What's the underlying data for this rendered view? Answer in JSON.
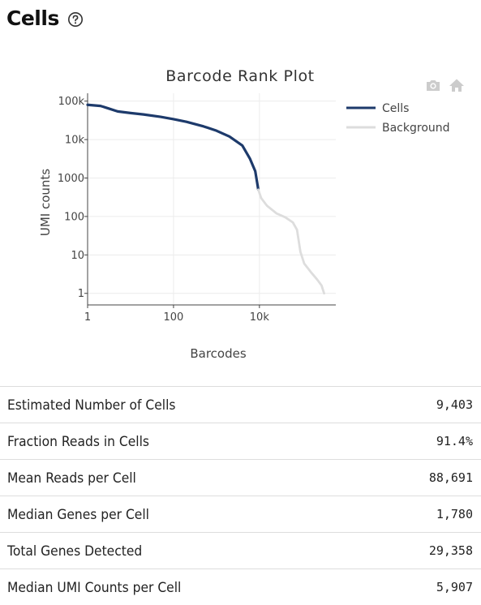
{
  "section": {
    "title": "Cells",
    "help_icon": "question-circle-icon"
  },
  "toolbar": {
    "icons": [
      "camera-icon",
      "home-icon"
    ]
  },
  "chart_data": {
    "type": "line",
    "title": "Barcode Rank Plot",
    "xlabel": "Barcodes",
    "ylabel": "UMI counts",
    "xscale": "log",
    "yscale": "log",
    "xlim": [
      1,
      600000
    ],
    "ylim": [
      0.5,
      160000
    ],
    "xticks": [
      {
        "value": 1,
        "label": "1"
      },
      {
        "value": 100,
        "label": "100"
      },
      {
        "value": 10000,
        "label": "10k"
      }
    ],
    "yticks": [
      {
        "value": 1,
        "label": "1"
      },
      {
        "value": 10,
        "label": "10"
      },
      {
        "value": 100,
        "label": "100"
      },
      {
        "value": 1000,
        "label": "1000"
      },
      {
        "value": 10000,
        "label": "10k"
      },
      {
        "value": 100000,
        "label": "100k"
      }
    ],
    "grid": true,
    "legend_position": "top-right",
    "series": [
      {
        "name": "Cells",
        "color": "#1d3a6b",
        "points": [
          [
            1,
            80000
          ],
          [
            2,
            75000
          ],
          [
            3,
            65000
          ],
          [
            5,
            54000
          ],
          [
            10,
            49000
          ],
          [
            20,
            45000
          ],
          [
            50,
            39000
          ],
          [
            100,
            34000
          ],
          [
            200,
            29000
          ],
          [
            500,
            22000
          ],
          [
            1000,
            17000
          ],
          [
            2000,
            12000
          ],
          [
            4000,
            7000
          ],
          [
            6000,
            3200
          ],
          [
            8000,
            1500
          ],
          [
            9403,
            500
          ]
        ]
      },
      {
        "name": "Background",
        "color": "#dddddd",
        "points": [
          [
            9403,
            500
          ],
          [
            11000,
            300
          ],
          [
            15000,
            190
          ],
          [
            25000,
            120
          ],
          [
            40000,
            95
          ],
          [
            60000,
            70
          ],
          [
            75000,
            45
          ],
          [
            90000,
            12
          ],
          [
            110000,
            6
          ],
          [
            160000,
            3.5
          ],
          [
            220000,
            2.3
          ],
          [
            280000,
            1.6
          ],
          [
            320000,
            1
          ]
        ]
      }
    ]
  },
  "metrics": [
    {
      "label": "Estimated Number of Cells",
      "value": "9,403"
    },
    {
      "label": "Fraction Reads in Cells",
      "value": "91.4%"
    },
    {
      "label": "Mean Reads per Cell",
      "value": "88,691"
    },
    {
      "label": "Median Genes per Cell",
      "value": "1,780"
    },
    {
      "label": "Total Genes Detected",
      "value": "29,358"
    },
    {
      "label": "Median UMI Counts per Cell",
      "value": "5,907"
    }
  ]
}
